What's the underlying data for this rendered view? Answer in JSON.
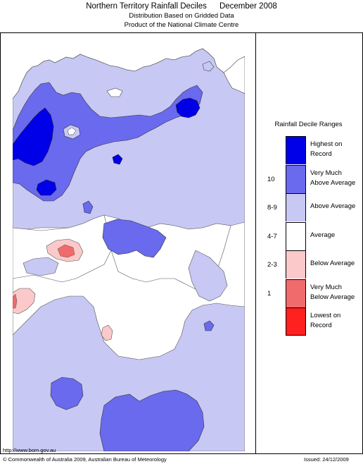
{
  "header": {
    "title": "Northern Territory Rainfall Deciles",
    "month": "December 2008",
    "subtitle_line1": "Distribution Based on Gridded Data",
    "subtitle_line2": "Product of the National Climate Centre"
  },
  "legend": {
    "title": "Rainfall Decile Ranges",
    "items": [
      {
        "color": "#0000e8",
        "label": "Highest on Record",
        "range": ""
      },
      {
        "color": "#6a6aee",
        "label": "Very Much Above Average",
        "range": "10"
      },
      {
        "color": "#c8c8f5",
        "label": "Above Average",
        "range": "8-9"
      },
      {
        "color": "#ffffff",
        "label": "Average",
        "range": "4-7"
      },
      {
        "color": "#fbc9c9",
        "label": "Below Average",
        "range": "2-3"
      },
      {
        "color": "#f06b6b",
        "label": "Very Much Below Average",
        "range": "1"
      },
      {
        "color": "#ff2020",
        "label": "Lowest on Record",
        "range": ""
      }
    ]
  },
  "footer": {
    "url": "http://www.bom.gov.au",
    "copyright": "© Commonwealth of Australia 2009, Australian Bureau of Meteorology",
    "issued": "Issued: 24/12/2009"
  }
}
